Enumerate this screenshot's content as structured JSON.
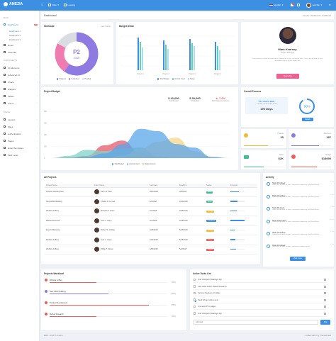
{
  "topbar": {
    "brand": "AMEZIA",
    "menu1": "Date",
    "menu2": "Leaving",
    "language": "English",
    "username": "Jennifer"
  },
  "sidebar": {
    "main_heading": "MAIN",
    "items": [
      {
        "label": "Dashboard",
        "badge": "12"
      },
      {
        "label": "Email"
      },
      {
        "label": "Calendar"
      }
    ],
    "subitems": [
      "Dashboard 1",
      "Dashboard 2",
      "Dashboard 3"
    ],
    "components_heading": "COMPONENTS",
    "comp_items": [
      "UI Elements",
      "Advanced UI",
      "Charts",
      "Widgets",
      "Tables",
      "Forms"
    ],
    "pages_heading": "PAGES",
    "page_items": [
      "Layouts",
      "Maps",
      "Authentication",
      "Pages",
      "Email Templates",
      "Multi Level"
    ]
  },
  "breadcrumb": {
    "title": "Dashboard",
    "path": "Amezia > Dashboard > Dashboard"
  },
  "workload": {
    "title": "Workload",
    "period": "Last 1 Month",
    "center": "P2",
    "sub": "230h",
    "legend": [
      "Progress",
      "Completed",
      "Pending"
    ]
  },
  "budget_detail": {
    "title": "Budget Detail",
    "legend": [
      "Total Budget",
      "Amount Used",
      "Target"
    ],
    "categories": [
      "Project 1",
      "Project 2",
      "Project 3",
      "Project 4"
    ]
  },
  "profile": {
    "name": "Mark Kearney",
    "role": "Project Manager",
    "bio": "Proin molestie condimentum lectus ac ullamcorper ut quis accumsan tellus. Lorem ipsum dolor sit amet consectetur adipiscing elit aliquet sem.",
    "button": "Follow Me"
  },
  "project_budget": {
    "title": "Project Budget",
    "stats": [
      {
        "value": "$ 42,000",
        "label": "Total Budget"
      },
      {
        "value": "$ 30,000",
        "label": "Marketing"
      },
      {
        "value": "▲ 7.0%",
        "label": "Total Target Completion"
      }
    ],
    "legend": [
      "Total Budget",
      "Amount Used",
      "Target Amount"
    ]
  },
  "chart_data": {
    "type": "area",
    "x": [
      "Jan",
      "Feb",
      "Mar",
      "Apr",
      "May",
      "Jun",
      "Jul",
      "Aug",
      "Sep",
      "Oct",
      "Nov"
    ],
    "ylabels": [
      "400",
      "300",
      "200",
      "100",
      "0"
    ],
    "ylim": [
      0,
      400
    ],
    "series": [
      {
        "color": "#e8596b",
        "values": [
          0,
          5,
          20,
          110,
          150,
          45,
          8,
          0,
          0,
          0,
          0
        ]
      },
      {
        "color": "#7fd1c9",
        "values": [
          0,
          20,
          70,
          60,
          80,
          90,
          15,
          0,
          0,
          0,
          0
        ]
      },
      {
        "color": "#f5d689",
        "values": [
          0,
          0,
          0,
          0,
          20,
          80,
          140,
          175,
          60,
          10,
          0
        ]
      },
      {
        "color": "#5aa5e8",
        "values": [
          0,
          0,
          10,
          40,
          120,
          250,
          230,
          120,
          90,
          10,
          0
        ]
      }
    ],
    "grid": true,
    "legend_position": "bottom"
  },
  "overall_process": {
    "title": "Overall Process",
    "headline": "P5 Launch Date",
    "subline": "Tuesday, 16 November 2018",
    "days": "190 Days",
    "percent": "90%",
    "button": "Details"
  },
  "minis": [
    {
      "label": "Projects",
      "value": "35",
      "color": "#f6b93b"
    },
    {
      "label": "Members",
      "value": "187",
      "color": "#8e7ae0"
    },
    {
      "label": "Tasks",
      "value": "$2K",
      "color": "#3bbf8f"
    },
    {
      "label": "Budget",
      "value": "$18090",
      "color": "#f25a5a"
    }
  ],
  "projects": {
    "title": "All Projects",
    "columns": [
      "Project Name",
      "Client Name",
      "Start date",
      "Deadline",
      "Status",
      "Progress"
    ],
    "rows": [
      {
        "name": "Product Development",
        "client": "Kevin G. Weir",
        "start": "4/14/2018",
        "deadline": "4/6/2018",
        "status": "Active",
        "sc": "#3bbf8f",
        "progress": 0.6
      },
      {
        "name": "New Office Building",
        "client": "Charlie R. Lomas",
        "start": "4/3/2018",
        "deadline": "4/10/2018",
        "status": "Active",
        "sc": "#3bbf8f",
        "progress": 0.5
      },
      {
        "name": "Website & Blog",
        "client": "Michael R. Orton",
        "start": "4/7/2018",
        "deadline": "4/28/2018",
        "status": "Pending",
        "sc": "#f6b93b",
        "progress": 0.45
      },
      {
        "name": "Market Research",
        "client": "Jone L. Hepp",
        "start": "4/7/2018",
        "deadline": "4/18/2018",
        "status": "Completed",
        "sc": "#3d8fe2",
        "progress": 1.0
      },
      {
        "name": "Export Marketing",
        "client": "Robert S. Gilding",
        "start": "4/28/2018",
        "deadline": "5/18/2018",
        "status": "Pending",
        "sc": "#f6b93b",
        "progress": 0.3
      },
      {
        "name": "Website & Blog",
        "client": "Jose L. Hepp",
        "start": "4/22/2018",
        "deadline": "5/18/2018",
        "status": "Delayed",
        "sc": "#f25a5a",
        "progress": 0.35
      },
      {
        "name": "Website & Blog",
        "client": "Phillip T. Moore",
        "start": "4/18/2018",
        "deadline": "5/4/2018",
        "status": "Delayed",
        "sc": "#f25a5a",
        "progress": 0.4
      }
    ]
  },
  "activity": {
    "title": "Activity",
    "items": [
      {
        "title": "Task Finished",
        "desc": "Lorem ipsum dolor sit amet, consectetur adipiscing elit. [Read More]",
        "time": "4 hrs"
      },
      {
        "title": "Task Overdue",
        "desc": "Lorem ipsum dolor sit amet, consectetur adipiscing elit. [Read More]",
        "time": "3 hrs"
      },
      {
        "title": "Task Restore",
        "desc": "Lorem ipsum dolor sit amet, consectetur adipiscing elit. [Read More]",
        "time": "5 hrs"
      },
      {
        "title": "New Comment",
        "desc": "Lorem ipsum dolor sit amet, consectetur adipiscing elit. [Read More]",
        "time": "10 hrs"
      },
      {
        "title": "Task Overdue",
        "desc": "Lorem ipsum dolor sit amet, consectetur adipiscing elit. [Read More]",
        "time": "1 hrs"
      },
      {
        "title": "Task Finished",
        "desc": "Lorem ipsum dolor sit amet, consectetur adipiscing elit.",
        "time": "4 hrs"
      }
    ],
    "button": "View more"
  },
  "projects_workload": {
    "title": "Projects Workload",
    "items": [
      {
        "label": "Website & Blog",
        "pct": "(40%)",
        "fill": 0.4,
        "color": "#f25a5a"
      },
      {
        "label": "New Office Building",
        "pct": "(50%)",
        "fill": 0.5,
        "color": "#8e7ae0"
      },
      {
        "label": "Product Development",
        "pct": "(85%)",
        "fill": 0.85,
        "color": "#f25a5a"
      },
      {
        "label": "Market Research",
        "pct": "(40%)",
        "fill": 0.4,
        "color": "#f25a5a"
      }
    ]
  },
  "tasks": {
    "title": "Active Tasks List",
    "items": [
      {
        "label": "Icon change in Redesign App",
        "done": false
      },
      {
        "label": "Add social button Market Research",
        "done": false
      },
      {
        "label": "Set new Features UI tables",
        "done": false
      },
      {
        "label": "Send full app documents",
        "done": true
      },
      {
        "label": "Connect API to pages",
        "done": false
      },
      {
        "label": "Icon change in Redesign App",
        "done": false
      }
    ],
    "placeholder": "Add task",
    "add_button": "Add"
  },
  "footer": {
    "left": "2018 – 2018 © Amezia",
    "right": "Crafted with ♥ by Themesbrand"
  }
}
